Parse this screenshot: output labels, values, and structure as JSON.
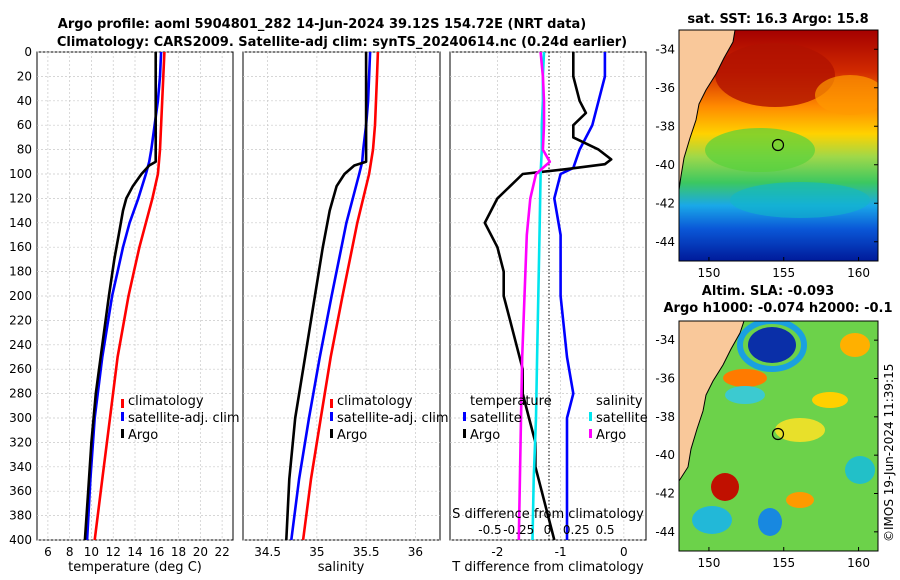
{
  "title": {
    "line1": "Argo profile: aoml 5904801_282 14-Jun-2024 39.12S 154.72E (NRT data)",
    "line2": "Climatology: CARS2009. Satellite-adj clim: synTS_20240614.nc (0.24d earlier)"
  },
  "copyright": "©IMOS 19-Jun-2024 11:39:15",
  "colors": {
    "climatology": "#ff0000",
    "satellite": "#0000ff",
    "argo": "#000000",
    "sat_salinity": "#00e5ee",
    "argo_salinity": "#ff00ff",
    "land": "#f9c89a"
  },
  "chart_data": [
    {
      "name": "temperature-panel",
      "type": "line",
      "xlabel": "temperature (deg C)",
      "ylabel": "",
      "xlim": [
        5,
        23
      ],
      "ylim": [
        0,
        400
      ],
      "xticks": [
        6,
        8,
        10,
        12,
        14,
        16,
        18,
        20,
        22
      ],
      "yticks": [
        0,
        20,
        40,
        60,
        80,
        100,
        120,
        140,
        160,
        180,
        200,
        220,
        240,
        260,
        280,
        300,
        320,
        340,
        360,
        380,
        400
      ],
      "legend": [
        "climatology",
        "satellite-adj. clim",
        "Argo"
      ],
      "series": [
        {
          "name": "climatology",
          "color": "#ff0000",
          "depth": [
            0,
            20,
            40,
            60,
            80,
            100,
            120,
            140,
            160,
            180,
            200,
            250,
            300,
            350,
            400
          ],
          "values": [
            16.7,
            16.6,
            16.5,
            16.4,
            16.3,
            16.1,
            15.6,
            15.0,
            14.4,
            13.9,
            13.4,
            12.4,
            11.7,
            11.0,
            10.3
          ]
        },
        {
          "name": "satellite-adj. clim",
          "color": "#0000ff",
          "depth": [
            0,
            20,
            40,
            60,
            80,
            90,
            100,
            120,
            140,
            160,
            180,
            200,
            250,
            300,
            350,
            400
          ],
          "values": [
            16.4,
            16.3,
            16.1,
            15.8,
            15.5,
            15.3,
            15.0,
            14.3,
            13.5,
            12.9,
            12.4,
            11.9,
            11.0,
            10.3,
            9.9,
            9.6
          ]
        },
        {
          "name": "Argo",
          "color": "#000000",
          "depth": [
            0,
            20,
            40,
            60,
            80,
            90,
            93,
            100,
            110,
            120,
            130,
            150,
            170,
            200,
            240,
            280,
            320,
            360,
            400
          ],
          "values": [
            15.9,
            15.9,
            15.9,
            15.9,
            15.9,
            15.9,
            15.3,
            14.6,
            13.8,
            13.2,
            12.9,
            12.5,
            12.1,
            11.6,
            11.0,
            10.4,
            10.0,
            9.7,
            9.4
          ]
        }
      ]
    },
    {
      "name": "salinity-panel",
      "type": "line",
      "xlabel": "salinity",
      "xlim": [
        34.25,
        36.25
      ],
      "ylim": [
        0,
        400
      ],
      "xticks": [
        34.5,
        35,
        35.5,
        36
      ],
      "legend": [
        "climatology",
        "satellite-adj. clim",
        "Argo"
      ],
      "series": [
        {
          "name": "climatology",
          "color": "#ff0000",
          "depth": [
            0,
            20,
            40,
            60,
            80,
            100,
            140,
            200,
            250,
            300,
            350,
            400
          ],
          "values": [
            35.62,
            35.61,
            35.6,
            35.59,
            35.57,
            35.53,
            35.41,
            35.26,
            35.14,
            35.04,
            34.94,
            34.86
          ]
        },
        {
          "name": "satellite-adj. clim",
          "color": "#0000ff",
          "depth": [
            0,
            20,
            40,
            60,
            80,
            90,
            100,
            140,
            200,
            250,
            300,
            350,
            400
          ],
          "values": [
            35.54,
            35.53,
            35.52,
            35.5,
            35.47,
            35.46,
            35.43,
            35.3,
            35.15,
            35.03,
            34.92,
            34.82,
            34.74
          ]
        },
        {
          "name": "Argo",
          "color": "#000000",
          "depth": [
            0,
            20,
            40,
            60,
            80,
            90,
            93,
            100,
            110,
            130,
            160,
            200,
            250,
            300,
            350,
            400
          ],
          "values": [
            35.5,
            35.5,
            35.5,
            35.5,
            35.5,
            35.5,
            35.38,
            35.28,
            35.2,
            35.13,
            35.06,
            34.98,
            34.88,
            34.78,
            34.72,
            34.69
          ]
        }
      ]
    },
    {
      "name": "difference-panel",
      "type": "line",
      "xlabel": "T difference from climatology",
      "xlabel_top": "S difference from climatology",
      "xlim": [
        -2.75,
        0.35
      ],
      "ylim": [
        0,
        400
      ],
      "xticks": [
        -2,
        -1,
        0
      ],
      "xticks_top": [
        -0.5,
        -0.25,
        0,
        0.25,
        0.5
      ],
      "tick_labels_top": [
        "-0.5",
        "-0.25",
        "0",
        "0.25",
        "0.5"
      ],
      "legend_temperature": [
        "temperature",
        "satellite",
        "Argo"
      ],
      "legend_salinity": [
        "salinity",
        "satellite",
        "Argo"
      ],
      "series": [
        {
          "name": "temperature satellite",
          "color": "#0000ff",
          "unit": "T",
          "depth": [
            0,
            20,
            40,
            60,
            80,
            95,
            100,
            120,
            150,
            200,
            250,
            280,
            300,
            350,
            400
          ],
          "values": [
            -0.3,
            -0.3,
            -0.4,
            -0.5,
            -0.7,
            -0.8,
            -1.0,
            -1.1,
            -1.0,
            -1.0,
            -0.9,
            -0.8,
            -0.9,
            -0.9,
            -0.9
          ]
        },
        {
          "name": "temperature Argo",
          "color": "#000000",
          "unit": "T",
          "depth": [
            0,
            20,
            40,
            50,
            60,
            70,
            80,
            88,
            92,
            96,
            100,
            110,
            120,
            140,
            160,
            180,
            200,
            220,
            240,
            260,
            280,
            300,
            320,
            340,
            360,
            380,
            400
          ],
          "values": [
            -0.8,
            -0.8,
            -0.7,
            -0.6,
            -0.8,
            -0.8,
            -0.4,
            -0.2,
            -0.3,
            -0.9,
            -1.6,
            -1.8,
            -2.0,
            -2.2,
            -2.0,
            -1.9,
            -1.9,
            -1.8,
            -1.7,
            -1.6,
            -1.6,
            -1.5,
            -1.4,
            -1.4,
            -1.3,
            -1.2,
            -1.1
          ]
        },
        {
          "name": "salinity satellite",
          "color": "#00e5ee",
          "unit": "S",
          "depth": [
            0,
            20,
            40,
            60,
            80,
            100,
            150,
            200,
            250,
            300,
            350,
            400
          ],
          "values": [
            -0.03,
            -0.04,
            -0.04,
            -0.05,
            -0.05,
            -0.06,
            -0.07,
            -0.08,
            -0.09,
            -0.1,
            -0.12,
            -0.13
          ]
        },
        {
          "name": "salinity Argo",
          "color": "#ff00ff",
          "unit": "S",
          "depth": [
            0,
            20,
            40,
            60,
            80,
            90,
            100,
            120,
            150,
            200,
            250,
            300,
            350,
            400
          ],
          "values": [
            -0.06,
            -0.04,
            -0.03,
            -0.03,
            -0.04,
            0.02,
            -0.1,
            -0.15,
            -0.18,
            -0.2,
            -0.22,
            -0.23,
            -0.24,
            -0.25
          ]
        }
      ]
    },
    {
      "name": "sst-map",
      "type": "heatmap",
      "title": "sat. SST: 16.3 Argo: 15.8",
      "xlim": [
        148,
        161.3
      ],
      "ylim": [
        -45,
        -33
      ],
      "xticks": [
        150,
        155,
        160
      ],
      "yticks": [
        -34,
        -36,
        -38,
        -40,
        -42,
        -44
      ],
      "argo_position": {
        "lon": 154.72,
        "lat": -39.12
      }
    },
    {
      "name": "sla-map",
      "type": "heatmap",
      "title": "Altim. SLA: -0.093",
      "subtitle": "Argo h1000: -0.074 h2000: -0.1",
      "xlim": [
        148,
        161.3
      ],
      "ylim": [
        -45,
        -33
      ],
      "xticks": [
        150,
        155,
        160
      ],
      "yticks": [
        -34,
        -36,
        -38,
        -40,
        -42,
        -44
      ],
      "argo_position": {
        "lon": 154.72,
        "lat": -39.12
      }
    }
  ]
}
